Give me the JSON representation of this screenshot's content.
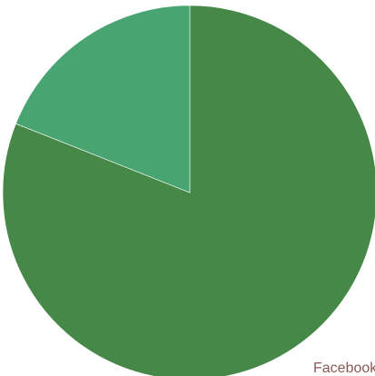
{
  "chart_data": {
    "type": "pie",
    "start_angle_deg": 0,
    "direction": "clockwise",
    "slices": [
      {
        "label": "Facebook",
        "value": 81.0,
        "color": "#468847"
      },
      {
        "label": "",
        "value": 19.0,
        "color": "#48a571"
      }
    ],
    "title": "",
    "legend": "none"
  }
}
